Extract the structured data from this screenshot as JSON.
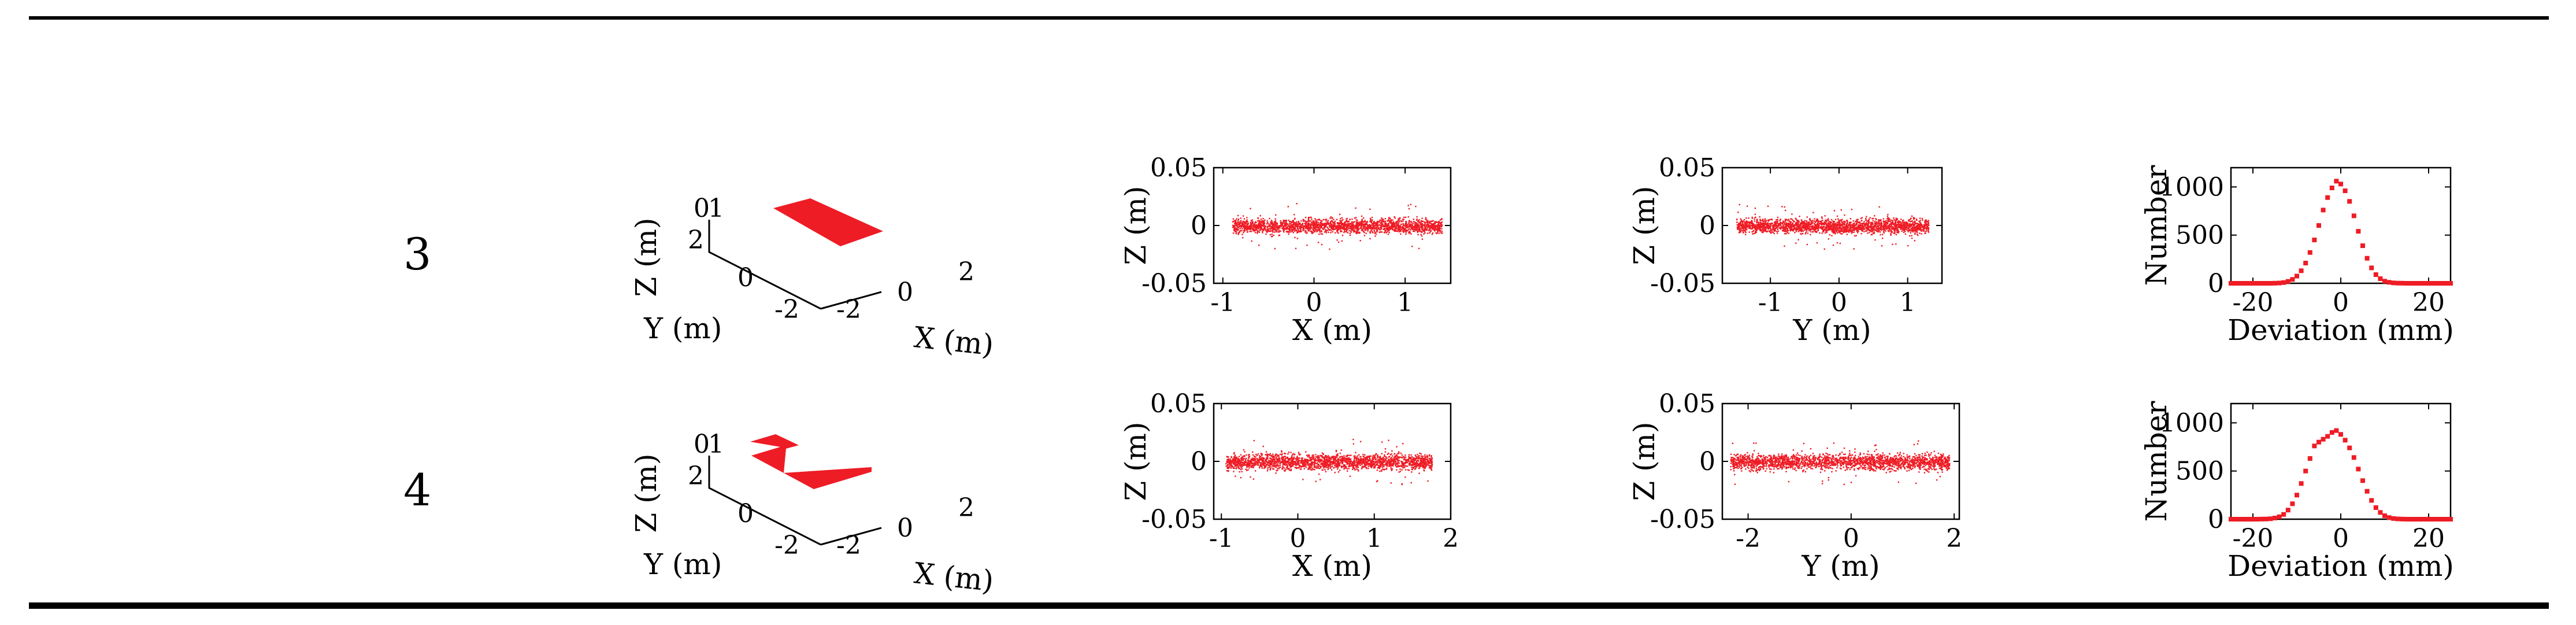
{
  "rows": [
    {
      "label": "3",
      "view3d": {
        "x_axis_label": "X (m)",
        "y_axis_label": "Y (m)",
        "z_axis_label": "Z (m)",
        "x_ticks": [
          "-2",
          "0",
          "2"
        ],
        "y_ticks": [
          "-2",
          "0",
          "2"
        ],
        "z_ticks": [
          "0"
        ],
        "z_tick_extra": "1",
        "shape": "plane"
      }
    },
    {
      "label": "4",
      "view3d": {
        "x_axis_label": "X (m)",
        "y_axis_label": "Y (m)",
        "z_axis_label": "Z (m)",
        "x_ticks": [
          "-2",
          "0",
          "2"
        ],
        "y_ticks": [
          "-2",
          "0",
          "2"
        ],
        "z_ticks": [
          "0"
        ],
        "z_tick_extra": "1",
        "shape": "L"
      }
    }
  ],
  "colors": {
    "points": "#ee1c25",
    "axis": "#000000"
  },
  "chart_data": [
    {
      "id": "r3-xz",
      "type": "scatter",
      "xlabel": "X (m)",
      "ylabel": "Z (m)",
      "xlim": [
        -1.1,
        1.5
      ],
      "ylim": [
        -0.05,
        0.05
      ],
      "xticks": [
        -1,
        0,
        1
      ],
      "xtick_labels": [
        "-1",
        "0",
        "1"
      ],
      "yticks": [
        -0.05,
        0,
        0.05
      ],
      "ytick_labels": [
        "-0.05",
        "0",
        "0.05"
      ],
      "cloud": {
        "x_range": [
          -0.9,
          1.4
        ],
        "center": 0,
        "half_width": 0.011,
        "outlier_spread": 0.02
      }
    },
    {
      "id": "r3-yz",
      "type": "scatter",
      "xlabel": "Y (m)",
      "ylabel": "Z (m)",
      "xlim": [
        -1.7,
        1.5
      ],
      "ylim": [
        -0.05,
        0.05
      ],
      "xticks": [
        -1,
        0,
        1
      ],
      "xtick_labels": [
        "-1",
        "0",
        "1"
      ],
      "yticks": [
        -0.05,
        0,
        0.05
      ],
      "ytick_labels": [
        "-0.05",
        "0",
        "0.05"
      ],
      "cloud": {
        "x_range": [
          -1.5,
          1.3
        ],
        "center": 0,
        "half_width": 0.011,
        "outlier_spread": 0.02
      }
    },
    {
      "id": "r3-hist",
      "type": "scatter",
      "xlabel": "Deviation (mm)",
      "ylabel": "Number",
      "xlim": [
        -25,
        25
      ],
      "ylim": [
        0,
        1200
      ],
      "xticks": [
        -20,
        0,
        20
      ],
      "xtick_labels": [
        "-20",
        "0",
        "20"
      ],
      "yticks": [
        0,
        500,
        1000
      ],
      "ytick_labels": [
        "0",
        "500",
        "1000"
      ],
      "x": [
        -25,
        -24,
        -23,
        -22,
        -21,
        -20,
        -19,
        -18,
        -17,
        -16,
        -15,
        -14,
        -13,
        -12,
        -11,
        -10,
        -9,
        -8,
        -7,
        -6,
        -5,
        -4,
        -3,
        -2,
        -1,
        0,
        1,
        2,
        3,
        4,
        5,
        6,
        7,
        8,
        9,
        10,
        11,
        12,
        13,
        14,
        15,
        16,
        17,
        18,
        19,
        20,
        21,
        22,
        23,
        24,
        25
      ],
      "y": [
        0,
        0,
        0,
        0,
        0,
        0,
        0,
        0,
        0,
        0,
        1,
        3,
        8,
        20,
        40,
        75,
        130,
        210,
        320,
        450,
        600,
        760,
        890,
        990,
        1060,
        1030,
        960,
        850,
        700,
        540,
        390,
        260,
        160,
        90,
        48,
        22,
        10,
        4,
        2,
        1,
        0,
        0,
        0,
        0,
        0,
        0,
        0,
        0,
        0,
        0,
        0
      ]
    },
    {
      "id": "r4-xz",
      "type": "scatter",
      "xlabel": "X (m)",
      "ylabel": "Z (m)",
      "xlim": [
        -1.1,
        2.0
      ],
      "ylim": [
        -0.05,
        0.05
      ],
      "xticks": [
        -1,
        0,
        1,
        2
      ],
      "xtick_labels": [
        "-1",
        "0",
        "1",
        "2"
      ],
      "yticks": [
        -0.05,
        0,
        0.05
      ],
      "ytick_labels": [
        "-0.05",
        "0",
        "0.05"
      ],
      "cloud": {
        "x_range": [
          -0.95,
          1.75
        ],
        "center": 0,
        "half_width": 0.012,
        "outlier_spread": 0.02
      }
    },
    {
      "id": "r4-yz",
      "type": "scatter",
      "xlabel": "Y (m)",
      "ylabel": "Z (m)",
      "xlim": [
        -2.5,
        2.1
      ],
      "ylim": [
        -0.05,
        0.05
      ],
      "xticks": [
        -2,
        0,
        2
      ],
      "xtick_labels": [
        "-2",
        "0",
        "2"
      ],
      "yticks": [
        -0.05,
        0,
        0.05
      ],
      "ytick_labels": [
        "-0.05",
        "0",
        "0.05"
      ],
      "cloud": {
        "x_range": [
          -2.35,
          1.9
        ],
        "center": 0,
        "half_width": 0.012,
        "outlier_spread": 0.02
      }
    },
    {
      "id": "r4-hist",
      "type": "scatter",
      "xlabel": "Deviation (mm)",
      "ylabel": "Number",
      "xlim": [
        -25,
        25
      ],
      "ylim": [
        0,
        1200
      ],
      "xticks": [
        -20,
        0,
        20
      ],
      "xtick_labels": [
        "-20",
        "0",
        "20"
      ],
      "yticks": [
        0,
        500,
        1000
      ],
      "ytick_labels": [
        "0",
        "500",
        "1000"
      ],
      "x": [
        -25,
        -24,
        -23,
        -22,
        -21,
        -20,
        -19,
        -18,
        -17,
        -16,
        -15,
        -14,
        -13,
        -12,
        -11,
        -10,
        -9,
        -8,
        -7,
        -6,
        -5,
        -4,
        -3,
        -2,
        -1,
        0,
        1,
        2,
        3,
        4,
        5,
        6,
        7,
        8,
        9,
        10,
        11,
        12,
        13,
        14,
        15,
        16,
        17,
        18,
        19,
        20,
        21,
        22,
        23,
        24,
        25
      ],
      "y": [
        0,
        0,
        0,
        0,
        0,
        0,
        0,
        1,
        2,
        5,
        12,
        25,
        50,
        95,
        160,
        250,
        370,
        500,
        630,
        760,
        800,
        830,
        860,
        900,
        920,
        880,
        820,
        740,
        640,
        520,
        400,
        290,
        195,
        120,
        70,
        36,
        17,
        7,
        3,
        1,
        0,
        0,
        0,
        0,
        0,
        0,
        0,
        0,
        0,
        0,
        0
      ]
    }
  ]
}
